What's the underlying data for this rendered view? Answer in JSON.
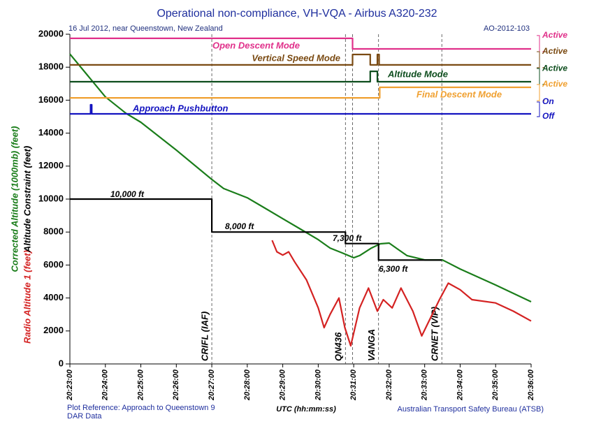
{
  "chart_data": {
    "type": "line",
    "title": "Operational non-compliance, VH-VQA - Airbus A320-232",
    "subtitle": "16 Jul 2012, near Queenstown, New Zealand",
    "report_id": "AO-2012-103",
    "footer_left": [
      "Plot Reference: Approach to Queenstown 9",
      "DAR Data"
    ],
    "footer_right": "Australian Transport Safety Bureau (ATSB)",
    "x_label": "UTC (hh:mm:ss)",
    "xlim": [
      73380,
      74160
    ],
    "xticks": [
      {
        "value": 73380,
        "label": "20:23:00"
      },
      {
        "value": 73440,
        "label": "20:24:00"
      },
      {
        "value": 73500,
        "label": "20:25:00"
      },
      {
        "value": 73560,
        "label": "20:26:00"
      },
      {
        "value": 73620,
        "label": "20:27:00"
      },
      {
        "value": 73680,
        "label": "20:28:00"
      },
      {
        "value": 73740,
        "label": "20:29:00"
      },
      {
        "value": 73800,
        "label": "20:30:00"
      },
      {
        "value": 73860,
        "label": "20:31:00"
      },
      {
        "value": 73920,
        "label": "20:32:00"
      },
      {
        "value": 73980,
        "label": "20:33:00"
      },
      {
        "value": 74040,
        "label": "20:34:00"
      },
      {
        "value": 74100,
        "label": "20:35:00"
      },
      {
        "value": 74160,
        "label": "20:36:00"
      }
    ],
    "ylim": [
      0,
      20000
    ],
    "yticks": [
      0,
      2000,
      4000,
      6000,
      8000,
      10000,
      12000,
      14000,
      16000,
      18000,
      20000
    ],
    "grid": false,
    "series": [
      {
        "name": "Corrected Altitude (1000mb) (feet)",
        "color": "#1a7d1a",
        "x": [
          73380,
          73410,
          73440,
          73475,
          73500,
          73560,
          73620,
          73640,
          73680,
          73710,
          73740,
          73770,
          73800,
          73820,
          73840,
          73860,
          73870,
          73890,
          73905,
          73920,
          73935,
          73950,
          73980,
          74010,
          74040,
          74100,
          74160
        ],
        "values": [
          18800,
          17500,
          16200,
          15200,
          14660,
          12970,
          11190,
          10640,
          10080,
          9450,
          8810,
          8180,
          7540,
          7030,
          6740,
          6440,
          6570,
          7030,
          7290,
          7330,
          6950,
          6570,
          6310,
          6310,
          5760,
          4790,
          3770
        ]
      },
      {
        "name": "Radio Altitude 1 (feet)",
        "color": "#d42222",
        "x": [
          73722,
          73730,
          73740,
          73750,
          73760,
          73780,
          73800,
          73810,
          73820,
          73835,
          73845,
          73855,
          73870,
          73885,
          73900,
          73910,
          73925,
          73940,
          73960,
          73975,
          73990,
          74005,
          74020,
          74040,
          74060,
          74100,
          74130,
          74160
        ],
        "values": [
          7500,
          6800,
          6600,
          6800,
          6200,
          5100,
          3400,
          2200,
          3000,
          4000,
          2200,
          1100,
          3400,
          4600,
          3200,
          3900,
          3400,
          4600,
          3200,
          1700,
          2800,
          3900,
          4900,
          4500,
          3900,
          3700,
          3200,
          2600
        ]
      },
      {
        "name": "Altitude Constraint (feet)",
        "color": "#000000",
        "x": [
          73380,
          73620,
          73620,
          73846,
          73846,
          73902,
          73902,
          74009
        ],
        "values": [
          10000,
          10000,
          8000,
          8000,
          7300,
          7300,
          6300,
          6300
        ],
        "step_labels": [
          "10,000 ft",
          "8,000 ft",
          "7,300 ft",
          "6,300 ft"
        ]
      },
      {
        "name": "Open Descent Mode",
        "color": "#e0308a",
        "states": [
          "Active",
          "-"
        ],
        "x": [
          73380,
          73858,
          73858,
          74160
        ],
        "values": [
          19750,
          19750,
          19110,
          19110
        ]
      },
      {
        "name": "Vertical Speed Mode",
        "color": "#7a4a12",
        "states": [
          "Active",
          "-"
        ],
        "x": [
          73380,
          73858,
          73858,
          73888,
          73888,
          73900,
          73900,
          73903,
          73903,
          74160
        ],
        "values": [
          18140,
          18140,
          18770,
          18770,
          18140,
          18140,
          18770,
          18770,
          18140,
          18140
        ]
      },
      {
        "name": "Altitude Mode",
        "color": "#0d4d1d",
        "states": [
          "Active",
          "-"
        ],
        "x": [
          73380,
          73888,
          73888,
          73900,
          73900,
          74160
        ],
        "values": [
          17120,
          17120,
          17750,
          17750,
          17120,
          17120
        ]
      },
      {
        "name": "Final Descent Mode",
        "color": "#f0a030",
        "states": [
          "Active",
          "-"
        ],
        "x": [
          73380,
          73904,
          73904,
          74160
        ],
        "values": [
          16140,
          16140,
          16780,
          16780
        ]
      },
      {
        "name": "Approach Pushbutton",
        "color": "#1414c0",
        "states": [
          "On",
          "Off"
        ],
        "x": [
          73380,
          73415,
          73415,
          73417,
          73417,
          74160
        ],
        "values": [
          15170,
          15170,
          15720,
          15720,
          15170,
          15170
        ]
      }
    ],
    "events": [
      {
        "x": 73620,
        "label": "CRIFL (IAF)"
      },
      {
        "x": 73846,
        "label": "QN436"
      },
      {
        "x": 73858,
        "label": null
      },
      {
        "x": 73902,
        "label": "VANGA"
      },
      {
        "x": 74009,
        "label": "CRNET (VIP)"
      }
    ]
  }
}
